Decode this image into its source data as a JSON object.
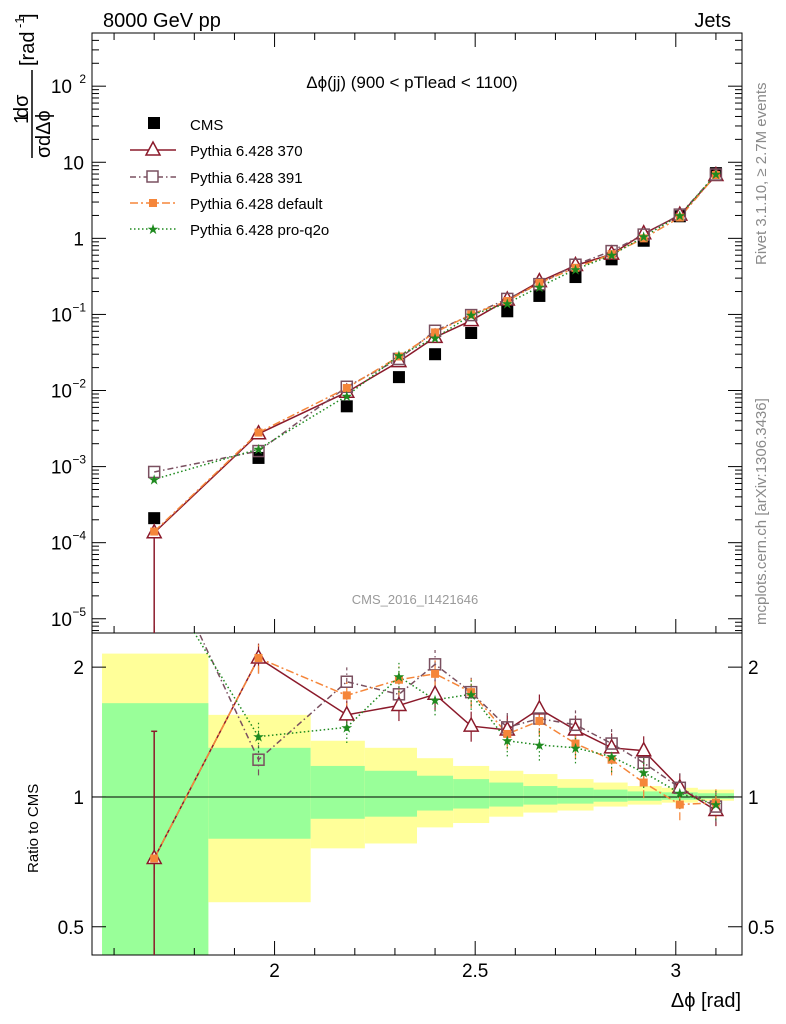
{
  "header": {
    "left": "8000 GeV pp",
    "right": "Jets"
  },
  "side_text": {
    "rivet": "Rivet 3.1.10, ≥ 2.7M events",
    "mcplots": "mcplots.cern.ch [arXiv:1306.3436]"
  },
  "ylabel_top": {
    "frac_num": "1",
    "d_sigma": "dσ",
    "frac_den_sigma": "σ",
    "d_dphi": "dΔϕ",
    "unit": "[rad",
    "unit_exp": "-1",
    "unit_close": "]"
  },
  "ylabel_bottom": "Ratio to CMS",
  "xlabel": "Δϕ [rad]",
  "colors": {
    "cms": "#000000",
    "p370": "#8b1a2b",
    "p391": "#7a5060",
    "pdef": "#f5863a",
    "pq2o": "#1f8a1f",
    "band_inner": "#99ff99",
    "band_outer": "#ffff99"
  },
  "chart_data": [
    {
      "type": "line",
      "title": "Δϕ(jj) (900 < pTlead <  1100)",
      "watermark": "CMS_2016_I1421646",
      "y_scale": "log",
      "xlim": [
        1.545,
        3.165
      ],
      "ylim": [
        6.5e-06,
        500
      ],
      "y_ticks": [
        {
          "value": 1e-05,
          "label": "10",
          "exp": "−5"
        },
        {
          "value": 0.0001,
          "label": "10",
          "exp": "−4"
        },
        {
          "value": 0.001,
          "label": "10",
          "exp": "−3"
        },
        {
          "value": 0.01,
          "label": "10",
          "exp": "−2"
        },
        {
          "value": 0.1,
          "label": "10",
          "exp": "−1"
        },
        {
          "value": 1,
          "label": "1",
          "exp": ""
        },
        {
          "value": 10,
          "label": "10",
          "exp": ""
        },
        {
          "value": 100,
          "label": "10",
          "exp": "2"
        }
      ],
      "x": [
        1.7,
        1.96,
        2.18,
        2.31,
        2.4,
        2.49,
        2.58,
        2.66,
        2.75,
        2.84,
        2.92,
        3.01,
        3.1
      ],
      "series": [
        {
          "name": "CMS",
          "marker": "square",
          "values": [
            0.00021,
            0.0013,
            0.0062,
            0.015,
            0.03,
            0.057,
            0.11,
            0.175,
            0.31,
            0.53,
            0.93,
            1.95,
            7.2
          ]
        },
        {
          "name": "Pythia 6.428 370",
          "marker": "triangle",
          "values": [
            0.000135,
            0.0027,
            0.0095,
            0.024,
            0.05,
            0.083,
            0.155,
            0.27,
            0.44,
            0.62,
            1.15,
            2.02,
            6.7
          ]
        },
        {
          "name": "Pythia 6.428 391",
          "marker": "open-square",
          "values": [
            0.00085,
            0.0016,
            0.0112,
            0.026,
            0.061,
            0.098,
            0.16,
            0.25,
            0.45,
            0.68,
            1.12,
            2.05,
            6.9
          ]
        },
        {
          "name": "Pythia 6.428 default",
          "marker": "filled-square",
          "values": [
            0.00014,
            0.0028,
            0.0108,
            0.028,
            0.058,
            0.1,
            0.15,
            0.26,
            0.41,
            0.62,
            1.0,
            1.88,
            6.8
          ]
        },
        {
          "name": "Pythia 6.428 pro-q2o",
          "marker": "star",
          "values": [
            0.00068,
            0.0017,
            0.0085,
            0.029,
            0.049,
            0.098,
            0.14,
            0.23,
            0.39,
            0.6,
            1.05,
            2.0,
            7.0
          ]
        }
      ]
    },
    {
      "type": "line",
      "y_scale": "log",
      "xlim": [
        1.545,
        3.165
      ],
      "ylim": [
        0.43,
        2.4
      ],
      "x_ticks": [
        2,
        2.5,
        3
      ],
      "y_ticks": [
        0.5,
        1,
        2
      ],
      "x": [
        1.7,
        1.96,
        2.18,
        2.31,
        2.4,
        2.49,
        2.58,
        2.66,
        2.75,
        2.84,
        2.92,
        3.01,
        3.1
      ],
      "band_bins": [
        {
          "x0": 1.57,
          "x1": 1.835,
          "outer": [
            0.43,
            2.15
          ],
          "inner": [
            0.43,
            1.65
          ]
        },
        {
          "x0": 1.835,
          "x1": 2.09,
          "outer": [
            0.57,
            1.55
          ],
          "inner": [
            0.8,
            1.3
          ]
        },
        {
          "x0": 2.09,
          "x1": 2.225,
          "outer": [
            0.76,
            1.35
          ],
          "inner": [
            0.89,
            1.18
          ]
        },
        {
          "x0": 2.225,
          "x1": 2.355,
          "outer": [
            0.78,
            1.3
          ],
          "inner": [
            0.9,
            1.15
          ]
        },
        {
          "x0": 2.355,
          "x1": 2.445,
          "outer": [
            0.85,
            1.23
          ],
          "inner": [
            0.93,
            1.12
          ]
        },
        {
          "x0": 2.445,
          "x1": 2.535,
          "outer": [
            0.87,
            1.18
          ],
          "inner": [
            0.94,
            1.1
          ]
        },
        {
          "x0": 2.535,
          "x1": 2.62,
          "outer": [
            0.9,
            1.15
          ],
          "inner": [
            0.95,
            1.08
          ]
        },
        {
          "x0": 2.62,
          "x1": 2.705,
          "outer": [
            0.92,
            1.13
          ],
          "inner": [
            0.96,
            1.06
          ]
        },
        {
          "x0": 2.705,
          "x1": 2.795,
          "outer": [
            0.93,
            1.1
          ],
          "inner": [
            0.965,
            1.05
          ]
        },
        {
          "x0": 2.795,
          "x1": 2.88,
          "outer": [
            0.95,
            1.08
          ],
          "inner": [
            0.975,
            1.04
          ]
        },
        {
          "x0": 2.88,
          "x1": 2.965,
          "outer": [
            0.96,
            1.06
          ],
          "inner": [
            0.98,
            1.03
          ]
        },
        {
          "x0": 2.965,
          "x1": 3.055,
          "outer": [
            0.97,
            1.05
          ],
          "inner": [
            0.985,
            1.025
          ]
        },
        {
          "x0": 3.055,
          "x1": 3.145,
          "outer": [
            0.98,
            1.04
          ],
          "inner": [
            0.99,
            1.02
          ]
        }
      ],
      "series": [
        {
          "name": "Pythia 6.428 370",
          "values": [
            0.72,
            2.1,
            1.55,
            1.63,
            1.73,
            1.46,
            1.43,
            1.6,
            1.43,
            1.3,
            1.28,
            1.05,
            0.93
          ]
        },
        {
          "name": "Pythia 6.428 391",
          "values": [
            4.0,
            1.22,
            1.85,
            1.73,
            2.03,
            1.75,
            1.45,
            1.52,
            1.47,
            1.33,
            1.2,
            1.05,
            0.95
          ]
        },
        {
          "name": "Pythia 6.428 default",
          "values": [
            0.72,
            2.1,
            1.72,
            1.87,
            1.93,
            1.75,
            1.4,
            1.5,
            1.33,
            1.22,
            1.08,
            0.96,
            0.97
          ]
        },
        {
          "name": "Pythia 6.428 pro-q2o",
          "values": [
            3.4,
            1.38,
            1.45,
            1.9,
            1.68,
            1.73,
            1.35,
            1.32,
            1.3,
            1.24,
            1.14,
            1.02,
            0.96
          ]
        }
      ]
    }
  ]
}
